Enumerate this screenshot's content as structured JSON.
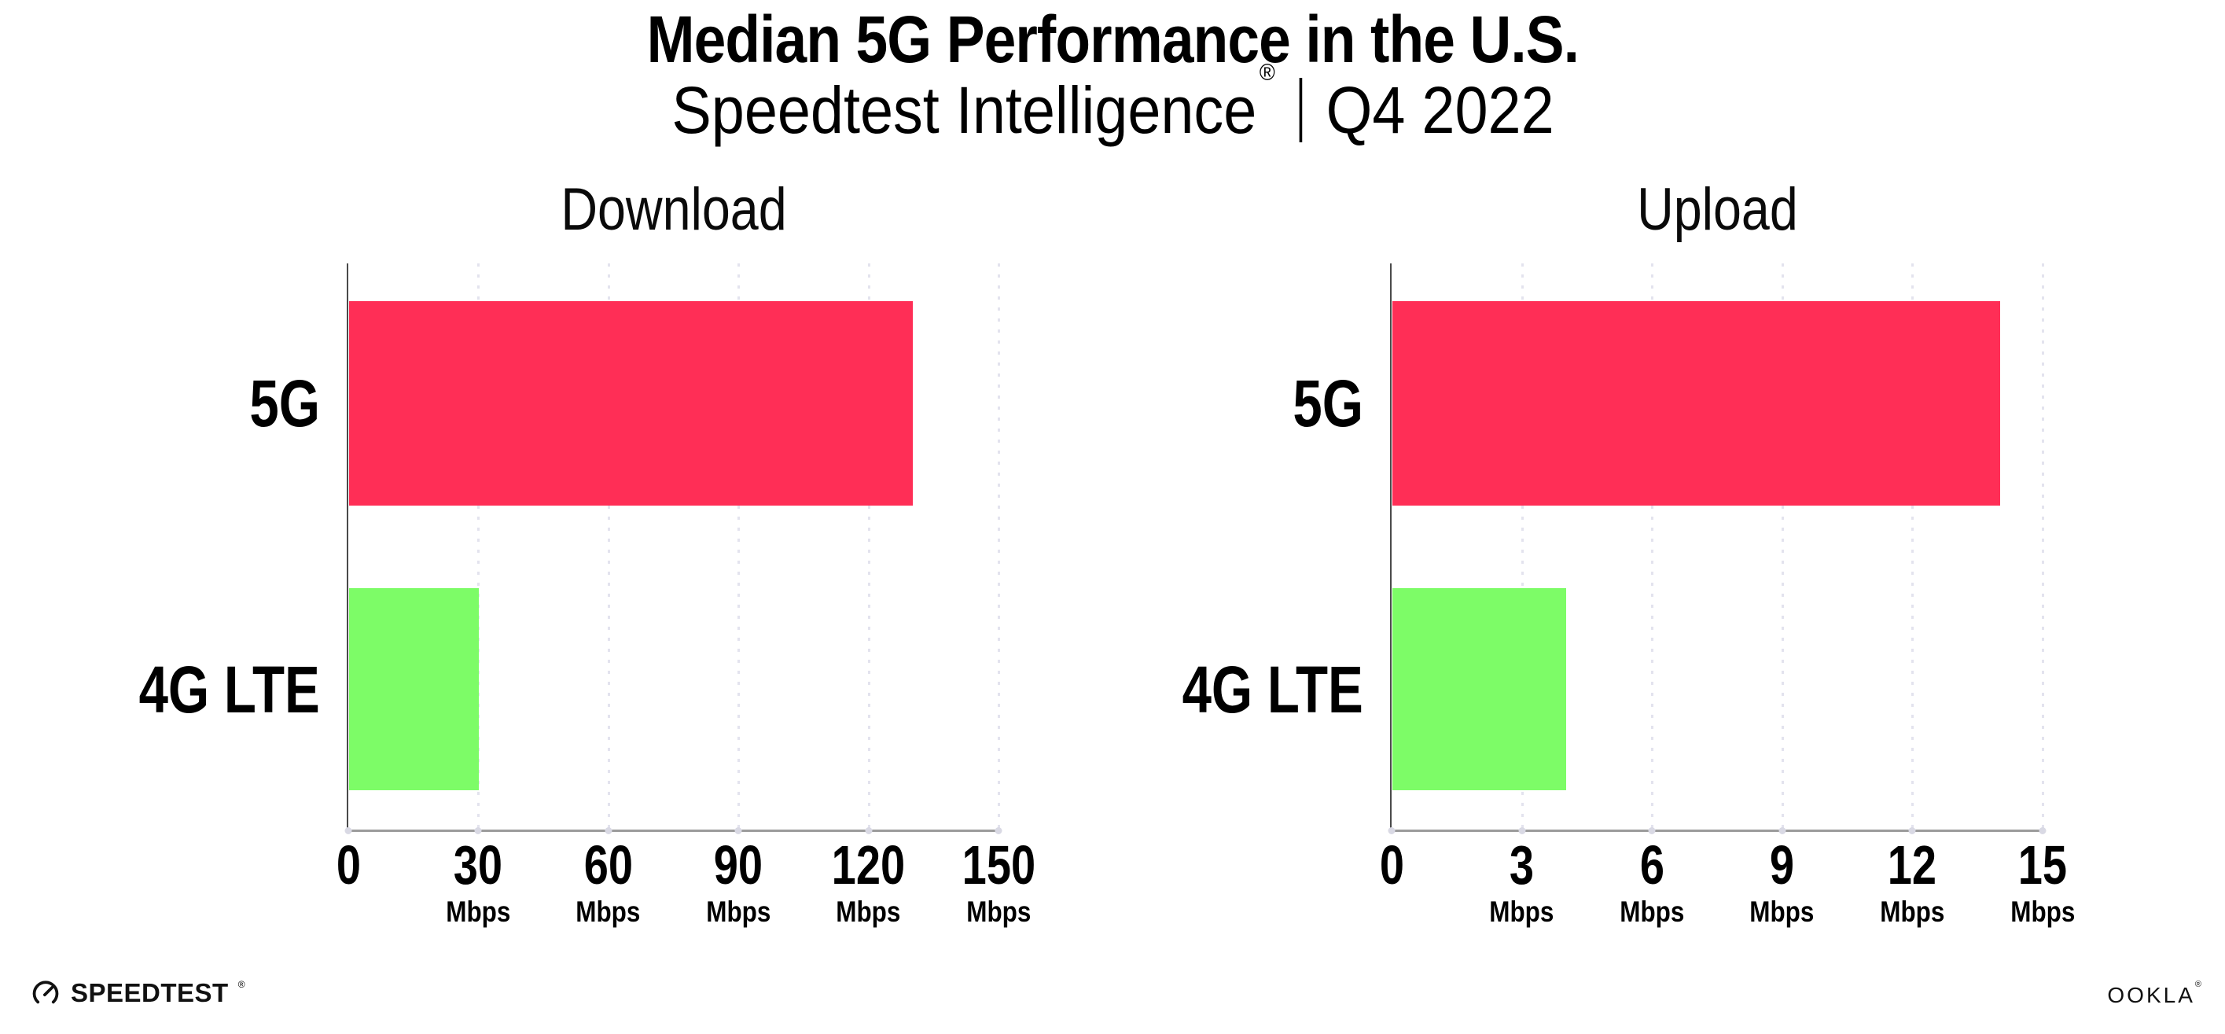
{
  "header": {
    "title": "Median 5G Performance in the U.S.",
    "subtitle_brand": "Speedtest Intelligence",
    "subtitle_reg": "®",
    "subtitle_period": "Q4 2022"
  },
  "colors": {
    "bar_5g": "#ff2e56",
    "bar_4g_lte": "#7dfc67",
    "gridline": "#e3e3ee",
    "x_axis": "#9b9b9b",
    "y_axis": "#4a4a4a",
    "text": "#000000"
  },
  "chart_data": [
    {
      "type": "bar",
      "orientation": "horizontal",
      "title": "Download",
      "categories": [
        "5G",
        "4G LTE"
      ],
      "values": [
        130,
        30
      ],
      "unit": "Mbps",
      "xlim": [
        0,
        150
      ],
      "xticks": [
        0,
        30,
        60,
        90,
        120,
        150
      ],
      "bar_colors": [
        "#ff2e56",
        "#7dfc67"
      ],
      "grid": "dotted vertical lines at ticks",
      "legend": "none"
    },
    {
      "type": "bar",
      "orientation": "horizontal",
      "title": "Upload",
      "categories": [
        "5G",
        "4G LTE"
      ],
      "values": [
        14,
        4
      ],
      "unit": "Mbps",
      "xlim": [
        0,
        15
      ],
      "xticks": [
        0,
        3,
        6,
        9,
        12,
        15
      ],
      "bar_colors": [
        "#ff2e56",
        "#7dfc67"
      ],
      "grid": "dotted vertical lines at ticks",
      "legend": "none"
    }
  ],
  "footer": {
    "speedtest": "SPEEDTEST",
    "speedtest_reg": "®",
    "ookla": "OOKLA",
    "ookla_reg": "®"
  }
}
